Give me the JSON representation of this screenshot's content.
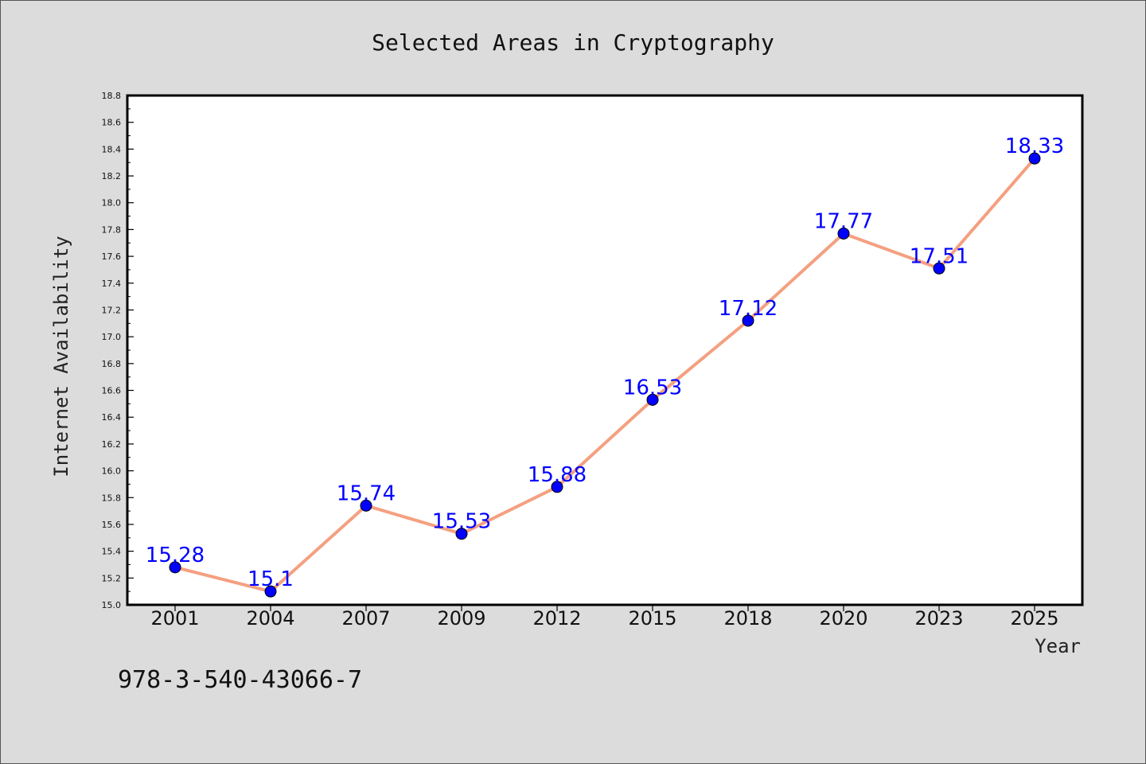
{
  "footer_text": "978-3-540-43066-7",
  "colors": {
    "background": "#dcdcdc",
    "plot_background": "#ffffff",
    "line": "#f4a081",
    "marker": "#0000ff",
    "data_label": "#0000ff"
  },
  "chart_data": {
    "type": "line",
    "title": "Selected Areas in Cryptography",
    "xlabel": "Year",
    "ylabel": "Internet Availability",
    "categories": [
      "2001",
      "2004",
      "2007",
      "2009",
      "2012",
      "2015",
      "2018",
      "2020",
      "2023",
      "2025"
    ],
    "series": [
      {
        "values": [
          15.28,
          15.1,
          15.74,
          15.53,
          15.88,
          16.53,
          17.12,
          17.77,
          17.51,
          18.33
        ]
      }
    ],
    "data_labels": [
      "15.28",
      "15.1",
      "15.74",
      "15.53",
      "15.88",
      "16.53",
      "17.12",
      "17.77",
      "17.51",
      "18.33"
    ],
    "yticks": [
      "15.0",
      "15.2",
      "15.4",
      "15.6",
      "15.8",
      "16.0",
      "16.2",
      "16.4",
      "16.6",
      "16.8",
      "17.0",
      "17.2",
      "17.4",
      "17.6",
      "17.8",
      "18.0",
      "18.2",
      "18.4",
      "18.6",
      "18.8"
    ],
    "ylim": [
      15.0,
      18.8
    ],
    "grid": false,
    "legend": "none"
  }
}
